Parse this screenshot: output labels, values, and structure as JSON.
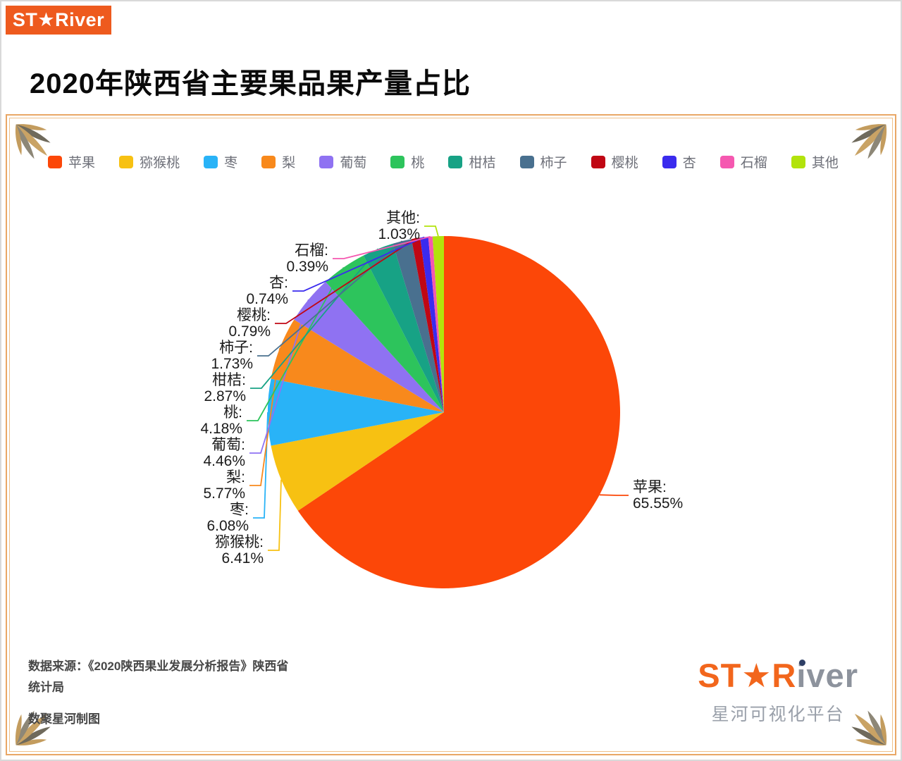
{
  "header": {
    "logo_text": "ST★River",
    "title": "2020年陕西省主要果品果产量占比"
  },
  "chart_data": {
    "type": "pie",
    "title": "2020年陕西省主要果品果产量占比",
    "value_unit": "%",
    "legend_position": "top",
    "start_angle": "12点钟方向顺时针",
    "label_format": "{name}: {value}%",
    "items": [
      {
        "label": "苹果",
        "value": 65.55,
        "color": "#fc4708"
      },
      {
        "label": "猕猴桃",
        "value": 6.41,
        "color": "#f7c112"
      },
      {
        "label": "枣",
        "value": 6.08,
        "color": "#29b3f7"
      },
      {
        "label": "梨",
        "value": 5.77,
        "color": "#f8891c"
      },
      {
        "label": "葡萄",
        "value": 4.46,
        "color": "#8f72f2"
      },
      {
        "label": "桃",
        "value": 4.18,
        "color": "#2dc45c"
      },
      {
        "label": "柑桔",
        "value": 2.87,
        "color": "#17a285"
      },
      {
        "label": "柿子",
        "value": 1.73,
        "color": "#49708f"
      },
      {
        "label": "樱桃",
        "value": 0.79,
        "color": "#c00714"
      },
      {
        "label": "杏",
        "value": 0.74,
        "color": "#3a2bee"
      },
      {
        "label": "石榴",
        "value": 0.39,
        "color": "#f558b0"
      },
      {
        "label": "其他",
        "value": 1.03,
        "color": "#b2e30c"
      }
    ]
  },
  "footer": {
    "source": "数据来源：《2020陕西果业发展分析报告》陕西省统计局",
    "credit": "数聚星河制图",
    "watermark_logo_orange": "ST★R",
    "watermark_logo_gray": "iver",
    "watermark_subtitle": "星河可视化平台"
  },
  "colors": {
    "brand_orange": "#ee5a1e",
    "panel_border": "#e9a766"
  }
}
